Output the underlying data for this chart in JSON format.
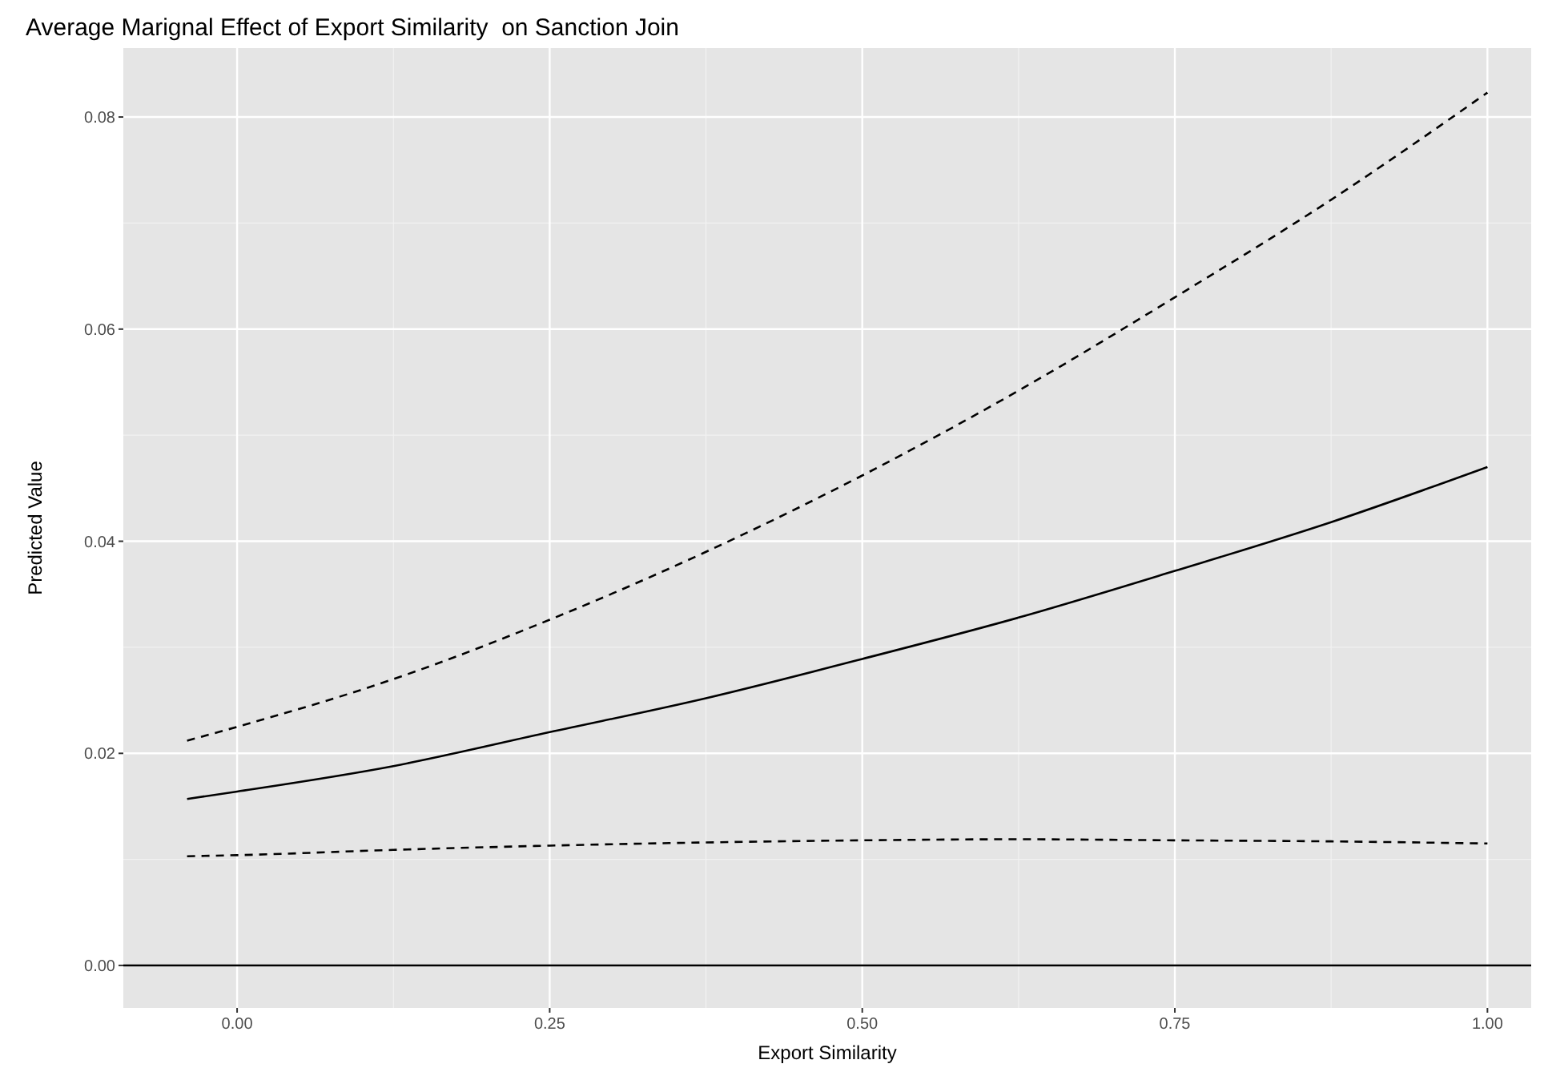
{
  "chart_data": {
    "type": "line",
    "title": "Average Marignal Effect of Export Similarity  on Sanction Join",
    "xlabel": "Export Similarity",
    "ylabel": "Predicted Value",
    "x": [
      -0.04,
      0,
      0.125,
      0.25,
      0.375,
      0.5,
      0.625,
      0.75,
      0.875,
      1.0
    ],
    "series": [
      {
        "color": "#000000",
        "line_style": "dashed",
        "values": [
          0.0212,
          0.0225,
          0.027,
          0.0326,
          0.039,
          0.0462,
          0.0542,
          0.063,
          0.0722,
          0.0823
        ]
      },
      {
        "color": "#000000",
        "line_style": "solid",
        "values": [
          0.0157,
          0.0164,
          0.0188,
          0.022,
          0.0252,
          0.0289,
          0.0328,
          0.0372,
          0.0418,
          0.047
        ]
      },
      {
        "color": "#000000",
        "line_style": "dashed",
        "values": [
          0.0103,
          0.0104,
          0.0109,
          0.0113,
          0.0116,
          0.0118,
          0.0119,
          0.0118,
          0.0117,
          0.0115
        ]
      }
    ],
    "xlim": [
      -0.091,
      1.035
    ],
    "ylim": [
      -0.004,
      0.0865
    ],
    "xticks": [
      {
        "value": 0,
        "label": "0.00"
      },
      {
        "value": 0.25,
        "label": "0.25"
      },
      {
        "value": 0.5,
        "label": "0.50"
      },
      {
        "value": 0.75,
        "label": "0.75"
      },
      {
        "value": 1,
        "label": "1.00"
      }
    ],
    "yticks": [
      {
        "value": 0,
        "label": "0.00"
      },
      {
        "value": 0.02,
        "label": "0.02"
      },
      {
        "value": 0.04,
        "label": "0.04"
      },
      {
        "value": 0.06,
        "label": "0.06"
      },
      {
        "value": 0.08,
        "label": "0.08"
      }
    ],
    "ref_lines": [
      {
        "axis": "y",
        "value": 0,
        "color": "#000000"
      }
    ],
    "grid": true
  }
}
